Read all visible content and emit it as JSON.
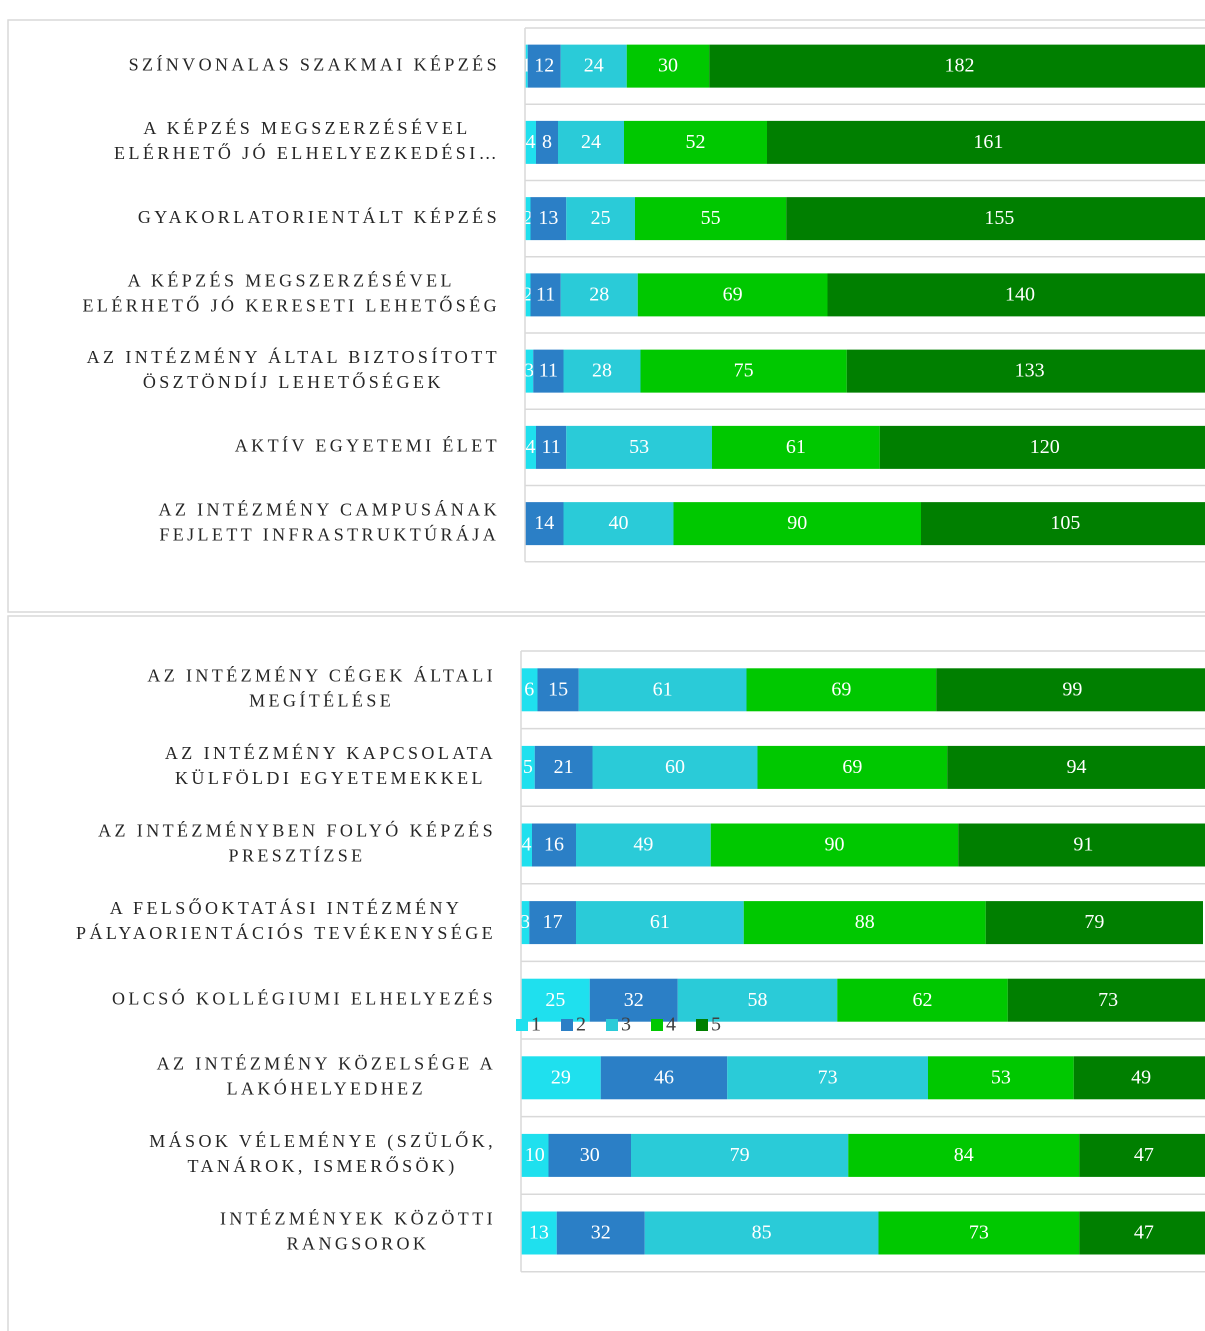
{
  "chart_data": [
    {
      "type": "stacked_barh",
      "categories": [
        [
          "SZÍNVONALAS SZAKMAI KÉPZÉS"
        ],
        [
          "A KÉPZÉS MEGSZERZÉSÉVEL",
          "ELÉRHETŐ JÓ ELHELYEZKEDÉSI…"
        ],
        [
          "GYAKORLATORIENTÁLT KÉPZÉS"
        ],
        [
          "A KÉPZÉS MEGSZERZÉSÉVEL",
          "ELÉRHETŐ JÓ KERESETI LEHETŐSÉG"
        ],
        [
          "AZ INTÉZMÉNY ÁLTAL BIZTOSÍTOTT",
          "ÖSZTÖNDÍJ LEHETŐSÉGEK"
        ],
        [
          "AKTÍV EGYETEMI ÉLET"
        ],
        [
          "AZ INTÉZMÉNY CAMPUSÁNAK",
          "FEJLETT INFRASTRUKTÚRÁJA"
        ]
      ],
      "series": [
        {
          "color": "#1fe0ee",
          "values": [
            1,
            4,
            2,
            2,
            3,
            4,
            0
          ]
        },
        {
          "color": "#2b7fc6",
          "values": [
            12,
            8,
            13,
            11,
            11,
            11,
            14
          ]
        },
        {
          "color": "#2acbd8",
          "values": [
            24,
            24,
            25,
            28,
            28,
            53,
            40
          ]
        },
        {
          "color": "#00c800",
          "values": [
            30,
            52,
            55,
            69,
            75,
            61,
            90
          ]
        },
        {
          "color": "#007f00",
          "values": [
            182,
            161,
            155,
            140,
            133,
            120,
            105
          ]
        }
      ],
      "xlim": [
        0,
        250
      ]
    },
    {
      "type": "stacked_barh",
      "categories": [
        [
          "AZ INTÉZMÉNY CÉGEK ÁLTALI",
          "MEGÍTÉLÉSE"
        ],
        [
          "AZ INTÉZMÉNY KAPCSOLATA",
          "KÜLFÖLDI EGYETEMEKKEL"
        ],
        [
          "AZ INTÉZMÉNYBEN FOLYÓ KÉPZÉS",
          "PRESZTÍZSE"
        ],
        [
          "A FELSŐOKTATÁSI INTÉZMÉNY",
          "PÁLYAORIENTÁCIÓS TEVÉKENYSÉGE"
        ],
        [
          "OLCSÓ KOLLÉGIUMI ELHELYEZÉS"
        ],
        [
          "AZ INTÉZMÉNY KÖZELSÉGE A",
          "LAKÓHELYEDHEZ"
        ],
        [
          "MÁSOK VÉLEMÉNYE (SZÜLŐK,",
          "TANÁROK, ISMERŐSÖK)"
        ],
        [
          "INTÉZMÉNYEK KÖZÖTTI",
          "RANGSOROK"
        ]
      ],
      "series": [
        {
          "name": "1",
          "color": "#1fe0ee",
          "values": [
            6,
            5,
            4,
            3,
            25,
            29,
            10,
            13
          ]
        },
        {
          "name": "2",
          "color": "#2b7fc6",
          "values": [
            15,
            21,
            16,
            17,
            32,
            46,
            30,
            32
          ]
        },
        {
          "name": "3",
          "color": "#2acbd8",
          "values": [
            61,
            60,
            49,
            61,
            58,
            73,
            79,
            85
          ]
        },
        {
          "name": "4",
          "color": "#00c800",
          "values": [
            69,
            69,
            90,
            88,
            62,
            53,
            84,
            73
          ]
        },
        {
          "name": "5",
          "color": "#007f00",
          "values": [
            99,
            94,
            91,
            79,
            73,
            49,
            47,
            47
          ]
        }
      ],
      "xlim": [
        0,
        250
      ],
      "legend": "bottom"
    }
  ]
}
